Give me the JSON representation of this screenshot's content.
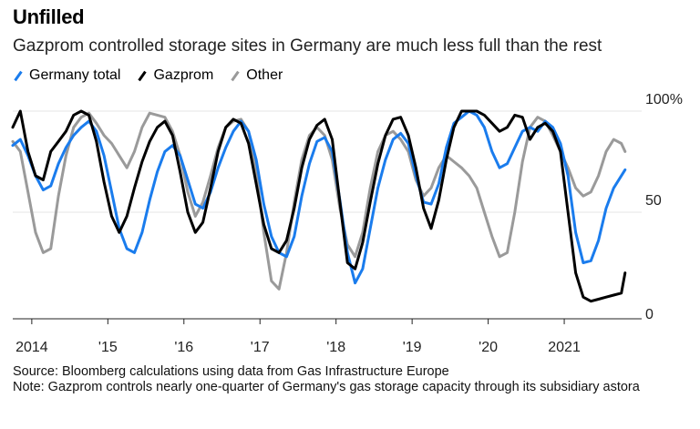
{
  "header": {
    "title": "Unfilled",
    "subtitle": "Gazprom controlled storage sites in Germany are much less full than the rest"
  },
  "chart_data": {
    "type": "line",
    "title": "Unfilled",
    "subtitle": "Gazprom controlled storage sites in Germany are much less full than the rest",
    "xlabel": "",
    "ylabel": "",
    "ylim": [
      0,
      100
    ],
    "xlim": [
      2013.75,
      2021.85
    ],
    "y_ticks": [
      {
        "value": 0,
        "label": "0"
      },
      {
        "value": 50,
        "label": "50"
      },
      {
        "value": 100,
        "label": "100%"
      }
    ],
    "x_ticks": [
      {
        "value": 2014,
        "label": "2014"
      },
      {
        "value": 2015,
        "label": "'15"
      },
      {
        "value": 2016,
        "label": "'16"
      },
      {
        "value": 2017,
        "label": "'17"
      },
      {
        "value": 2018,
        "label": "'18"
      },
      {
        "value": 2019,
        "label": "'19"
      },
      {
        "value": 2020,
        "label": "'20"
      },
      {
        "value": 2021,
        "label": "2021"
      }
    ],
    "grid": true,
    "legend_position": "top-left",
    "series": [
      {
        "name": "Germany total",
        "color": "#1a7ced",
        "x": [
          2013.75,
          2013.85,
          2013.95,
          2014.05,
          2014.15,
          2014.25,
          2014.35,
          2014.45,
          2014.55,
          2014.65,
          2014.75,
          2014.85,
          2014.95,
          2015.05,
          2015.15,
          2015.25,
          2015.35,
          2015.45,
          2015.55,
          2015.65,
          2015.75,
          2015.85,
          2015.95,
          2016.05,
          2016.15,
          2016.25,
          2016.35,
          2016.45,
          2016.55,
          2016.65,
          2016.75,
          2016.85,
          2016.95,
          2017.05,
          2017.15,
          2017.25,
          2017.35,
          2017.45,
          2017.55,
          2017.65,
          2017.75,
          2017.85,
          2017.95,
          2018.05,
          2018.15,
          2018.25,
          2018.35,
          2018.45,
          2018.55,
          2018.65,
          2018.75,
          2018.85,
          2018.95,
          2019.05,
          2019.15,
          2019.25,
          2019.35,
          2019.45,
          2019.55,
          2019.65,
          2019.75,
          2019.85,
          2019.95,
          2020.05,
          2020.15,
          2020.25,
          2020.35,
          2020.45,
          2020.55,
          2020.65,
          2020.75,
          2020.85,
          2020.95,
          2021.05,
          2021.15,
          2021.25,
          2021.35,
          2021.45,
          2021.55,
          2021.65,
          2021.8
        ],
        "values": [
          83,
          86,
          78,
          68,
          61,
          63,
          74,
          82,
          88,
          92,
          95,
          90,
          78,
          60,
          42,
          32,
          30,
          40,
          56,
          70,
          80,
          83,
          78,
          66,
          54,
          52,
          60,
          72,
          82,
          90,
          95,
          90,
          76,
          54,
          38,
          30,
          28,
          38,
          58,
          74,
          85,
          87,
          80,
          56,
          30,
          15,
          22,
          42,
          62,
          76,
          86,
          89,
          84,
          68,
          55,
          54,
          64,
          82,
          94,
          97,
          100,
          98,
          92,
          80,
          72,
          74,
          82,
          90,
          92,
          90,
          95,
          92,
          84,
          68,
          40,
          25,
          26,
          36,
          52,
          62,
          71
        ]
      },
      {
        "name": "Gazprom",
        "color": "#000000",
        "x": [
          2013.75,
          2013.85,
          2013.95,
          2014.05,
          2014.15,
          2014.25,
          2014.35,
          2014.45,
          2014.55,
          2014.65,
          2014.75,
          2014.85,
          2014.95,
          2015.05,
          2015.15,
          2015.25,
          2015.35,
          2015.45,
          2015.55,
          2015.65,
          2015.75,
          2015.85,
          2015.95,
          2016.05,
          2016.15,
          2016.25,
          2016.35,
          2016.45,
          2016.55,
          2016.65,
          2016.75,
          2016.85,
          2016.95,
          2017.05,
          2017.15,
          2017.25,
          2017.35,
          2017.45,
          2017.55,
          2017.65,
          2017.75,
          2017.85,
          2017.95,
          2018.05,
          2018.15,
          2018.25,
          2018.35,
          2018.45,
          2018.55,
          2018.65,
          2018.75,
          2018.85,
          2018.95,
          2019.05,
          2019.15,
          2019.25,
          2019.35,
          2019.45,
          2019.55,
          2019.65,
          2019.75,
          2019.85,
          2019.95,
          2020.05,
          2020.15,
          2020.25,
          2020.35,
          2020.45,
          2020.55,
          2020.65,
          2020.75,
          2020.85,
          2020.95,
          2021.05,
          2021.15,
          2021.25,
          2021.35,
          2021.45,
          2021.55,
          2021.65,
          2021.75,
          2021.8
        ],
        "values": [
          92,
          100,
          80,
          68,
          66,
          80,
          85,
          90,
          98,
          100,
          98,
          85,
          65,
          48,
          40,
          48,
          62,
          75,
          85,
          92,
          95,
          88,
          70,
          50,
          40,
          45,
          62,
          80,
          92,
          96,
          94,
          84,
          64,
          44,
          32,
          30,
          36,
          52,
          72,
          86,
          93,
          96,
          86,
          55,
          25,
          22,
          35,
          55,
          74,
          88,
          96,
          97,
          88,
          72,
          52,
          42,
          56,
          76,
          92,
          100,
          100,
          100,
          98,
          94,
          90,
          92,
          98,
          97,
          86,
          92,
          94,
          90,
          80,
          50,
          20,
          8,
          6,
          7,
          8,
          9,
          10,
          20
        ]
      },
      {
        "name": "Other",
        "color": "#9a9a9a",
        "x": [
          2013.75,
          2013.85,
          2013.95,
          2014.05,
          2014.15,
          2014.25,
          2014.35,
          2014.45,
          2014.55,
          2014.65,
          2014.75,
          2014.85,
          2014.95,
          2015.05,
          2015.15,
          2015.25,
          2015.35,
          2015.45,
          2015.55,
          2015.65,
          2015.75,
          2015.85,
          2015.95,
          2016.05,
          2016.15,
          2016.25,
          2016.35,
          2016.45,
          2016.55,
          2016.65,
          2016.75,
          2016.85,
          2016.95,
          2017.05,
          2017.15,
          2017.25,
          2017.35,
          2017.45,
          2017.55,
          2017.65,
          2017.75,
          2017.85,
          2017.95,
          2018.05,
          2018.15,
          2018.25,
          2018.35,
          2018.45,
          2018.55,
          2018.65,
          2018.75,
          2018.85,
          2018.95,
          2019.05,
          2019.15,
          2019.25,
          2019.35,
          2019.45,
          2019.55,
          2019.65,
          2019.75,
          2019.85,
          2019.95,
          2020.05,
          2020.15,
          2020.25,
          2020.35,
          2020.45,
          2020.55,
          2020.65,
          2020.75,
          2020.85,
          2020.95,
          2021.05,
          2021.15,
          2021.25,
          2021.35,
          2021.45,
          2021.55,
          2021.65,
          2021.75,
          2021.8
        ],
        "values": [
          85,
          80,
          60,
          40,
          30,
          32,
          58,
          78,
          92,
          97,
          99,
          94,
          88,
          84,
          78,
          72,
          80,
          92,
          99,
          98,
          97,
          90,
          78,
          60,
          48,
          55,
          68,
          82,
          92,
          95,
          96,
          90,
          70,
          40,
          16,
          12,
          30,
          55,
          76,
          88,
          92,
          88,
          76,
          52,
          34,
          28,
          40,
          62,
          80,
          88,
          90,
          86,
          80,
          66,
          58,
          62,
          72,
          78,
          75,
          72,
          68,
          62,
          50,
          38,
          28,
          30,
          50,
          75,
          92,
          97,
          95,
          88,
          80,
          72,
          62,
          58,
          60,
          68,
          80,
          86,
          84,
          80
        ]
      }
    ]
  },
  "footer": {
    "source": "Source: Bloomberg calculations using data from Gas Infrastructure Europe",
    "note": "Note: Gazprom controls nearly one-quarter of Germany's gas storage capacity through its subsidiary astora"
  },
  "colors": {
    "germany_total": "#1a7ced",
    "gazprom": "#000000",
    "other": "#9a9a9a",
    "grid": "#e6e6e6"
  }
}
